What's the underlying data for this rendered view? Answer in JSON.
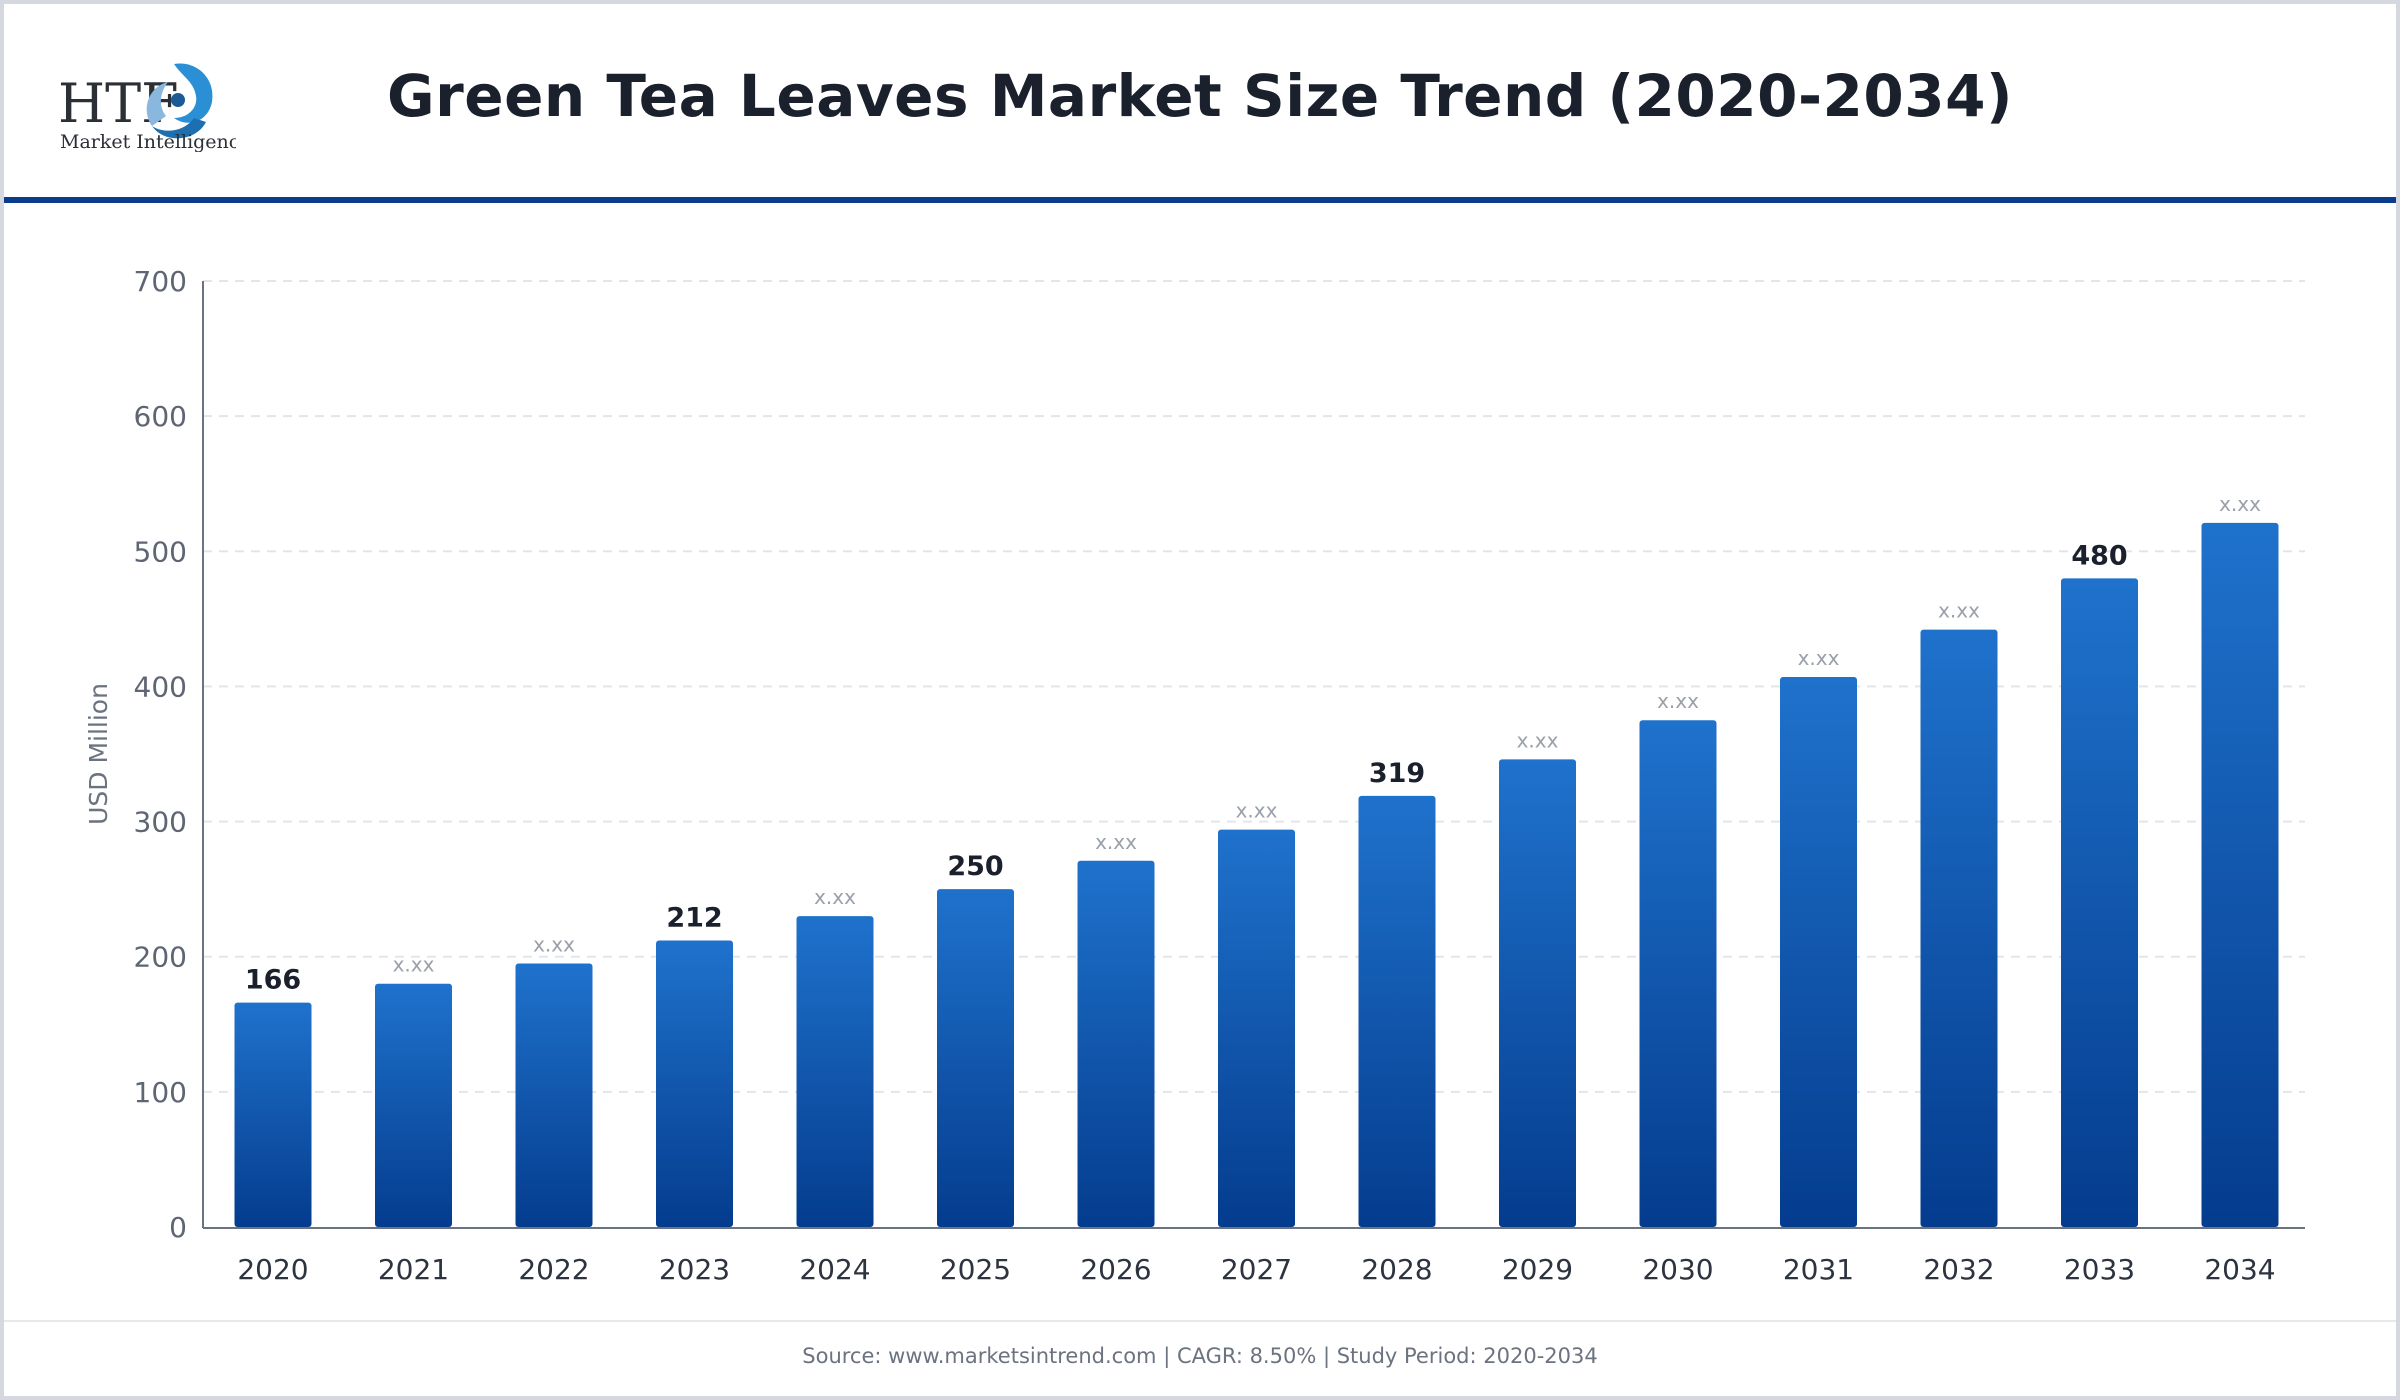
{
  "header": {
    "title": "Green Tea Leaves Market Size Trend (2020-2034)"
  },
  "logo": {
    "brand": "HTF",
    "subtitle": "Market Intelligence",
    "icon": "htf-swirl-logo-icon"
  },
  "footer": {
    "text": "Source: www.marketsintrend.com  |  CAGR: 8.50%  |  Study Period: 2020-2034"
  },
  "colors": {
    "bar_top": "#1f72cc",
    "bar_bottom": "#043c8e",
    "accent": "#0b3d8c",
    "value_label": "#1a202c",
    "placeholder_label": "#9aa0a8",
    "axis_text": "#5f6673"
  },
  "chart_data": {
    "type": "bar",
    "title": "Green Tea Leaves Market Size Trend (2020-2034)",
    "xlabel": "",
    "ylabel": "USD Million",
    "ylim": [
      0,
      700
    ],
    "yticks": [
      0,
      100,
      200,
      300,
      400,
      500,
      600,
      700
    ],
    "grid": true,
    "categories": [
      "2020",
      "2021",
      "2022",
      "2023",
      "2024",
      "2025",
      "2026",
      "2027",
      "2028",
      "2029",
      "2030",
      "2031",
      "2032",
      "2033",
      "2034"
    ],
    "values": [
      166,
      180,
      195,
      212,
      230,
      250,
      271,
      294,
      319,
      346,
      375,
      407,
      442,
      480,
      521
    ],
    "data_labels": [
      "166",
      "x.xx",
      "x.xx",
      "212",
      "x.xx",
      "250",
      "x.xx",
      "x.xx",
      "319",
      "x.xx",
      "x.xx",
      "x.xx",
      "x.xx",
      "480",
      "x.xx"
    ]
  }
}
